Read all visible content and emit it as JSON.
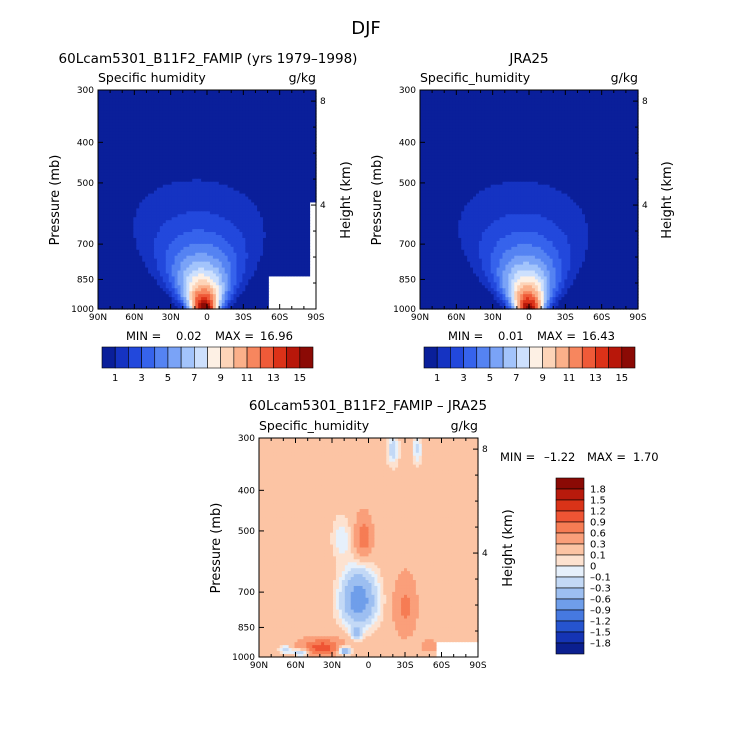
{
  "figure_title": "DJF",
  "chart_data": [
    {
      "type": "heatmap",
      "title": "60Lcam5301_B11F2_FAMIP (yrs 1979–1998)",
      "subtitle_left": "Specific humidity",
      "units": "g/kg",
      "xlabel": "",
      "ylabel": "Pressure (mb)",
      "y2label": "Height (km)",
      "x_ticks": [
        "90N",
        "60N",
        "30N",
        "0",
        "30S",
        "60S",
        "90S"
      ],
      "y_ticks": [
        "300",
        "400",
        "500",
        "700",
        "850",
        "1000"
      ],
      "y2_ticks": [
        "8",
        "4"
      ],
      "xlim": [
        90,
        -90
      ],
      "ylim": [
        1000,
        300
      ],
      "log_y": true,
      "stats": {
        "min_label": "MIN =",
        "min": "0.02",
        "max_label": "MAX =",
        "max": "16.96"
      },
      "colorbar": {
        "orientation": "horizontal",
        "labels": [
          "1",
          "3",
          "5",
          "7",
          "9",
          "11",
          "13",
          "15"
        ],
        "colors": [
          "#0a1f9a",
          "#1533c2",
          "#2248dc",
          "#3663ec",
          "#5583f2",
          "#7aa3f7",
          "#a3c4fb",
          "#cde0fd",
          "#fdf0e4",
          "#fdd4b8",
          "#fbb08a",
          "#f7865e",
          "#ef5a38",
          "#dc3218",
          "#b8170a",
          "#8b0a05"
        ]
      },
      "humidity_peak": 17.0,
      "humidity_center_lat": 2,
      "pressure_mask": 320
    },
    {
      "type": "heatmap",
      "title": "JRA25",
      "subtitle_left": "Specific_humidity",
      "units": "g/kg",
      "xlabel": "",
      "ylabel": "Pressure (mb)",
      "y2label": "Height (km)",
      "x_ticks": [
        "90N",
        "60N",
        "30N",
        "0",
        "30S",
        "60S",
        "90S"
      ],
      "y_ticks": [
        "300",
        "400",
        "500",
        "700",
        "850",
        "1000"
      ],
      "y2_ticks": [
        "8",
        "4"
      ],
      "xlim": [
        90,
        -90
      ],
      "ylim": [
        1000,
        300
      ],
      "log_y": true,
      "stats": {
        "min_label": "MIN =",
        "min": "0.01",
        "max_label": "MAX =",
        "max": "16.43"
      },
      "colorbar": {
        "orientation": "horizontal",
        "labels": [
          "1",
          "3",
          "5",
          "7",
          "9",
          "11",
          "13",
          "15"
        ],
        "colors": [
          "#0a1f9a",
          "#1533c2",
          "#2248dc",
          "#3663ec",
          "#5583f2",
          "#7aa3f7",
          "#a3c4fb",
          "#cde0fd",
          "#fdf0e4",
          "#fdd4b8",
          "#fbb08a",
          "#f7865e",
          "#ef5a38",
          "#dc3218",
          "#b8170a",
          "#8b0a05"
        ]
      },
      "humidity_peak": 16.5,
      "humidity_center_lat": 0,
      "pressure_mask": 0
    },
    {
      "type": "heatmap",
      "title": "60Lcam5301_B11F2_FAMIP – JRA25",
      "subtitle_left": "Specific_humidity",
      "units": "g/kg",
      "xlabel": "",
      "ylabel": "Pressure (mb)",
      "y2label": "Height (km)",
      "x_ticks": [
        "90N",
        "60N",
        "30N",
        "0",
        "30S",
        "60S",
        "90S"
      ],
      "y_ticks": [
        "300",
        "400",
        "500",
        "700",
        "850",
        "1000"
      ],
      "y2_ticks": [
        "8",
        "4"
      ],
      "xlim": [
        90,
        -90
      ],
      "ylim": [
        1000,
        300
      ],
      "log_y": true,
      "stats": {
        "min_label": "MIN =",
        "min": "–1.22",
        "max_label": "MAX =",
        "max": "1.70"
      },
      "colorbar": {
        "orientation": "vertical",
        "labels": [
          "1.8",
          "1.5",
          "1.2",
          "0.9",
          "0.6",
          "0.3",
          "0.1",
          "0",
          "–0.1",
          "–0.3",
          "–0.6",
          "–0.9",
          "–1.2",
          "–1.5",
          "–1.8"
        ],
        "colors": [
          "#8b0a05",
          "#b81a0c",
          "#d93318",
          "#ef5434",
          "#f67c54",
          "#fa9f7a",
          "#fcc4a4",
          "#fde2d0",
          "#e6f0fb",
          "#c3d9f6",
          "#9dbff1",
          "#6f9eea",
          "#4679e0",
          "#2654cf",
          "#1534b4",
          "#0b1f8f"
        ],
        "bounds": [
          -1.8,
          -1.5,
          -1.2,
          -0.9,
          -0.6,
          -0.3,
          -0.1,
          0,
          0.1,
          0.3,
          0.6,
          0.9,
          1.2,
          1.5,
          1.8
        ]
      }
    }
  ]
}
